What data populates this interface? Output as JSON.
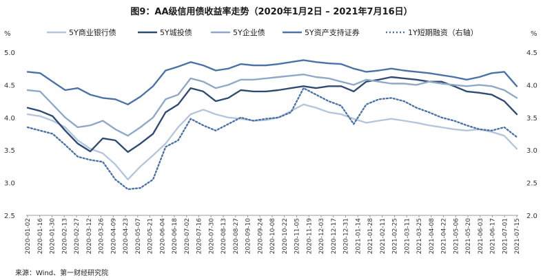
{
  "title": "图9：AA级信用债收益率走势（2020年1月2日 – 2021年7月16日）",
  "source": "来源：Wind、第一财经研究院",
  "chart_data": {
    "type": "line",
    "left_unit": "%",
    "right_unit": "%",
    "ylim_left": [
      2.5,
      5.0
    ],
    "ylim_right": [
      2.0,
      4.5
    ],
    "yticks_left": [
      "2.5",
      "3.0",
      "3.5",
      "4.0",
      "4.5",
      "5.0"
    ],
    "yticks_right": [
      "2.0",
      "2.5",
      "3.0",
      "3.5",
      "4.0",
      "4.5"
    ],
    "legend_position": "top",
    "grid": false,
    "x": [
      "2020-01-02",
      "2020-01-15",
      "2020-02-03",
      "2020-02-13",
      "2020-02-27",
      "2020-03-12",
      "2020-03-26",
      "2020-04-09",
      "2020-04-23",
      "2020-05-08",
      "2020-05-21",
      "2020-06-04",
      "2020-06-18",
      "2020-07-02",
      "2020-07-16",
      "2020-07-30",
      "2020-08-13",
      "2020-08-27",
      "2020-09-10",
      "2020-09-24",
      "2020-10-15",
      "2020-10-29",
      "2020-11-12",
      "2020-11-26",
      "2020-12-10",
      "2020-12-24",
      "2021-01-07",
      "2021-01-21",
      "2021-02-04",
      "2021-02-25",
      "2021-03-11",
      "2021-03-25",
      "2021-04-08",
      "2021-04-22",
      "2021-05-10",
      "2021-05-24",
      "2021-06-07",
      "2021-06-22",
      "2021-07-06",
      "2021-07-16"
    ],
    "xtick_labels": [
      "2020-01-02",
      "2020-01-16",
      "2020-01-30",
      "2020-02-13",
      "2020-02-27",
      "2020-03-12",
      "2020-03-26",
      "2020-04-09",
      "2020-04-23",
      "2020-05-07",
      "2020-05-21",
      "2020-06-04",
      "2020-06-18",
      "2020-07-02",
      "2020-07-16",
      "2020-07-30",
      "2020-08-13",
      "2020-08-27",
      "2020-09-10",
      "2020-09-24",
      "2020-10-08",
      "2020-10-22",
      "2020-11-05",
      "2020-11-19",
      "2020-12-03",
      "2020-12-17",
      "2020-12-31",
      "2021-01-14",
      "2021-01-28",
      "2021-02-11",
      "2021-02-25",
      "2021-03-11",
      "2021-03-25",
      "2021-04-08",
      "2021-04-22",
      "2021-05-06",
      "2021-05-20",
      "2021-06-03",
      "2021-06-17",
      "2021-07-01",
      "2021-07-15"
    ],
    "series": [
      {
        "name": "5Y商业银行债",
        "axis": "left",
        "color": "#b3c6dc",
        "width": 2.4,
        "dash": "",
        "values": [
          4.05,
          4.02,
          3.95,
          3.85,
          3.65,
          3.52,
          3.45,
          3.28,
          3.05,
          3.25,
          3.42,
          3.6,
          3.85,
          4.05,
          4.12,
          4.05,
          4.0,
          3.98,
          3.95,
          3.96,
          4.0,
          4.1,
          4.2,
          4.15,
          4.08,
          4.05,
          3.98,
          3.92,
          3.95,
          3.98,
          3.95,
          3.92,
          3.88,
          3.85,
          3.82,
          3.8,
          3.82,
          3.78,
          3.72,
          3.52
        ]
      },
      {
        "name": "5Y城投债",
        "axis": "left",
        "color": "#2f4b74",
        "width": 2.4,
        "dash": "",
        "values": [
          4.15,
          4.1,
          4.02,
          3.8,
          3.6,
          3.48,
          3.68,
          3.65,
          3.47,
          3.6,
          3.75,
          4.08,
          4.2,
          4.45,
          4.4,
          4.25,
          4.3,
          4.42,
          4.4,
          4.4,
          4.42,
          4.45,
          4.48,
          4.45,
          4.48,
          4.48,
          4.4,
          4.55,
          4.58,
          4.62,
          4.6,
          4.58,
          4.55,
          4.55,
          4.48,
          4.4,
          4.38,
          4.35,
          4.25,
          4.05
        ]
      },
      {
        "name": "5Y企业债",
        "axis": "left",
        "color": "#8fa8c8",
        "width": 2.4,
        "dash": "",
        "values": [
          4.42,
          4.4,
          4.2,
          4.0,
          3.85,
          3.88,
          3.95,
          3.82,
          3.72,
          3.85,
          4.0,
          4.28,
          4.35,
          4.6,
          4.55,
          4.45,
          4.5,
          4.58,
          4.58,
          4.6,
          4.62,
          4.64,
          4.66,
          4.62,
          4.6,
          4.55,
          4.5,
          4.58,
          4.55,
          4.52,
          4.52,
          4.5,
          4.55,
          4.52,
          4.5,
          4.48,
          4.5,
          4.48,
          4.42,
          4.3
        ]
      },
      {
        "name": "5Y资产支持证券",
        "axis": "left",
        "color": "#4a72a8",
        "width": 2.4,
        "dash": "",
        "values": [
          4.7,
          4.68,
          4.55,
          4.42,
          4.45,
          4.35,
          4.3,
          4.28,
          4.2,
          4.32,
          4.48,
          4.72,
          4.78,
          4.85,
          4.8,
          4.72,
          4.75,
          4.82,
          4.8,
          4.8,
          4.82,
          4.85,
          4.88,
          4.85,
          4.83,
          4.82,
          4.75,
          4.7,
          4.72,
          4.75,
          4.72,
          4.7,
          4.68,
          4.65,
          4.62,
          4.58,
          4.62,
          4.68,
          4.7,
          4.48
        ]
      },
      {
        "name": "1Y短期融资（右轴）",
        "axis": "right",
        "color": "#4a72a8",
        "width": 2.4,
        "dash": "2,3",
        "values": [
          3.35,
          3.3,
          3.25,
          3.08,
          2.9,
          2.85,
          2.82,
          2.55,
          2.4,
          2.42,
          2.55,
          3.05,
          3.15,
          3.48,
          3.38,
          3.3,
          3.4,
          3.5,
          3.45,
          3.48,
          3.5,
          3.58,
          3.95,
          3.85,
          3.75,
          3.68,
          3.4,
          3.7,
          3.78,
          3.8,
          3.75,
          3.65,
          3.58,
          3.5,
          3.45,
          3.38,
          3.32,
          3.3,
          3.35,
          3.2
        ]
      }
    ]
  }
}
